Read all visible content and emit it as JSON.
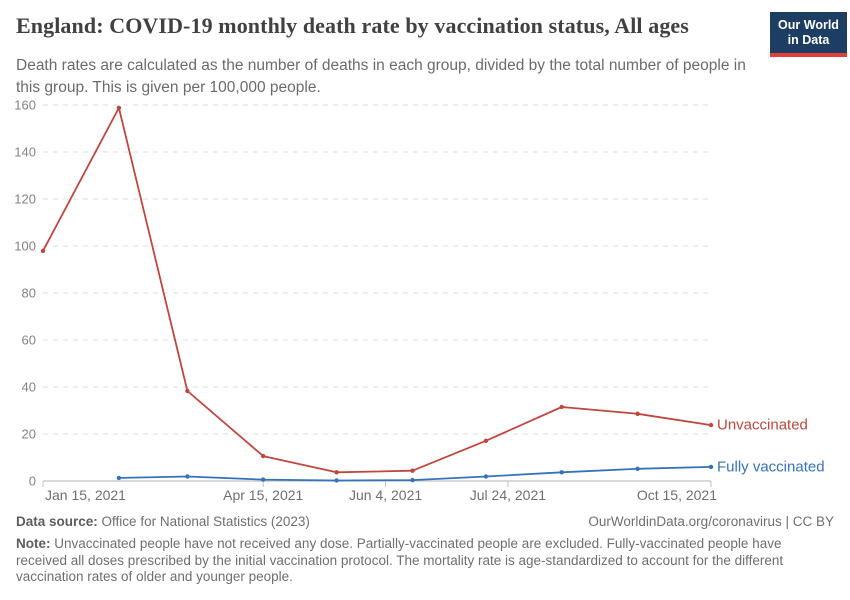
{
  "header": {
    "title": "England: COVID-19 monthly death rate by vaccination status, All ages",
    "subtitle": "Death rates are calculated as the number of deaths in each group, divided by the total number of people in this group. This is given per 100,000 people.",
    "logo": {
      "line1": "Our World",
      "line2": "in Data",
      "bg_color": "#1d3d63",
      "bar_color": "#e0403a"
    }
  },
  "chart_data": {
    "type": "line",
    "title": "England: COVID-19 monthly death rate by vaccination status, All ages",
    "xlabel": "",
    "ylabel": "",
    "ylim": [
      0,
      160
    ],
    "y_ticks": [
      0,
      20,
      40,
      60,
      80,
      100,
      120,
      140,
      160
    ],
    "xlim_days": [
      0,
      273
    ],
    "grid": "horizontal-dashed",
    "legend_position": "end-of-line-labels",
    "axis_color": "#c2c2c2",
    "grid_color": "#dcdcdc",
    "tick_label_color": "#848484",
    "x_label_color": "#6f6f6f",
    "x_tick_labels": [
      {
        "label": "Jan 15, 2021",
        "day": 0,
        "anchor": "start"
      },
      {
        "label": "Apr 15, 2021",
        "day": 90,
        "anchor": "middle"
      },
      {
        "label": "Jun 4, 2021",
        "day": 140,
        "anchor": "middle"
      },
      {
        "label": "Jul 24, 2021",
        "day": 190,
        "anchor": "middle"
      },
      {
        "label": "Oct 15, 2021",
        "day": 273,
        "anchor": "end"
      }
    ],
    "series": [
      {
        "name": "Unvaccinated",
        "color": "#c0473d",
        "points": [
          {
            "date": "Jan 15, 2021",
            "day": 0,
            "value": 97.9
          },
          {
            "date": "Feb 15, 2021",
            "day": 31,
            "value": 158.8
          },
          {
            "date": "Mar 15, 2021",
            "day": 59,
            "value": 38.3
          },
          {
            "date": "Apr 15, 2021",
            "day": 90,
            "value": 10.6
          },
          {
            "date": "May 15, 2021",
            "day": 120,
            "value": 3.7
          },
          {
            "date": "Jun 15, 2021",
            "day": 151,
            "value": 4.4
          },
          {
            "date": "Jul 15, 2021",
            "day": 181,
            "value": 17.1
          },
          {
            "date": "Aug 15, 2021",
            "day": 212,
            "value": 31.5
          },
          {
            "date": "Sep 15, 2021",
            "day": 243,
            "value": 28.6
          },
          {
            "date": "Oct 15, 2021",
            "day": 273,
            "value": 23.8
          }
        ]
      },
      {
        "name": "Fully vaccinated",
        "color": "#3573b8",
        "points": [
          {
            "date": "Feb 15, 2021",
            "day": 31,
            "value": 1.3
          },
          {
            "date": "Mar 15, 2021",
            "day": 59,
            "value": 1.9
          },
          {
            "date": "Apr 15, 2021",
            "day": 90,
            "value": 0.6
          },
          {
            "date": "May 15, 2021",
            "day": 120,
            "value": 0.2
          },
          {
            "date": "Jun 15, 2021",
            "day": 151,
            "value": 0.4
          },
          {
            "date": "Jul 15, 2021",
            "day": 181,
            "value": 1.9
          },
          {
            "date": "Aug 15, 2021",
            "day": 212,
            "value": 3.7
          },
          {
            "date": "Sep 15, 2021",
            "day": 243,
            "value": 5.2
          },
          {
            "date": "Oct 15, 2021",
            "day": 273,
            "value": 6.0
          }
        ]
      }
    ]
  },
  "footer": {
    "data_source_label": "Data source:",
    "data_source_value": "Office for National Statistics (2023)",
    "attribution": "OurWorldinData.org/coronavirus | CC BY",
    "note_label": "Note:",
    "note_text": "Unvaccinated people have not received any dose. Partially-vaccinated people are excluded. Fully-vaccinated people have received all doses prescribed by the initial vaccination protocol. The mortality rate is age-standardized to account for the different vaccination rates of older and younger people."
  }
}
